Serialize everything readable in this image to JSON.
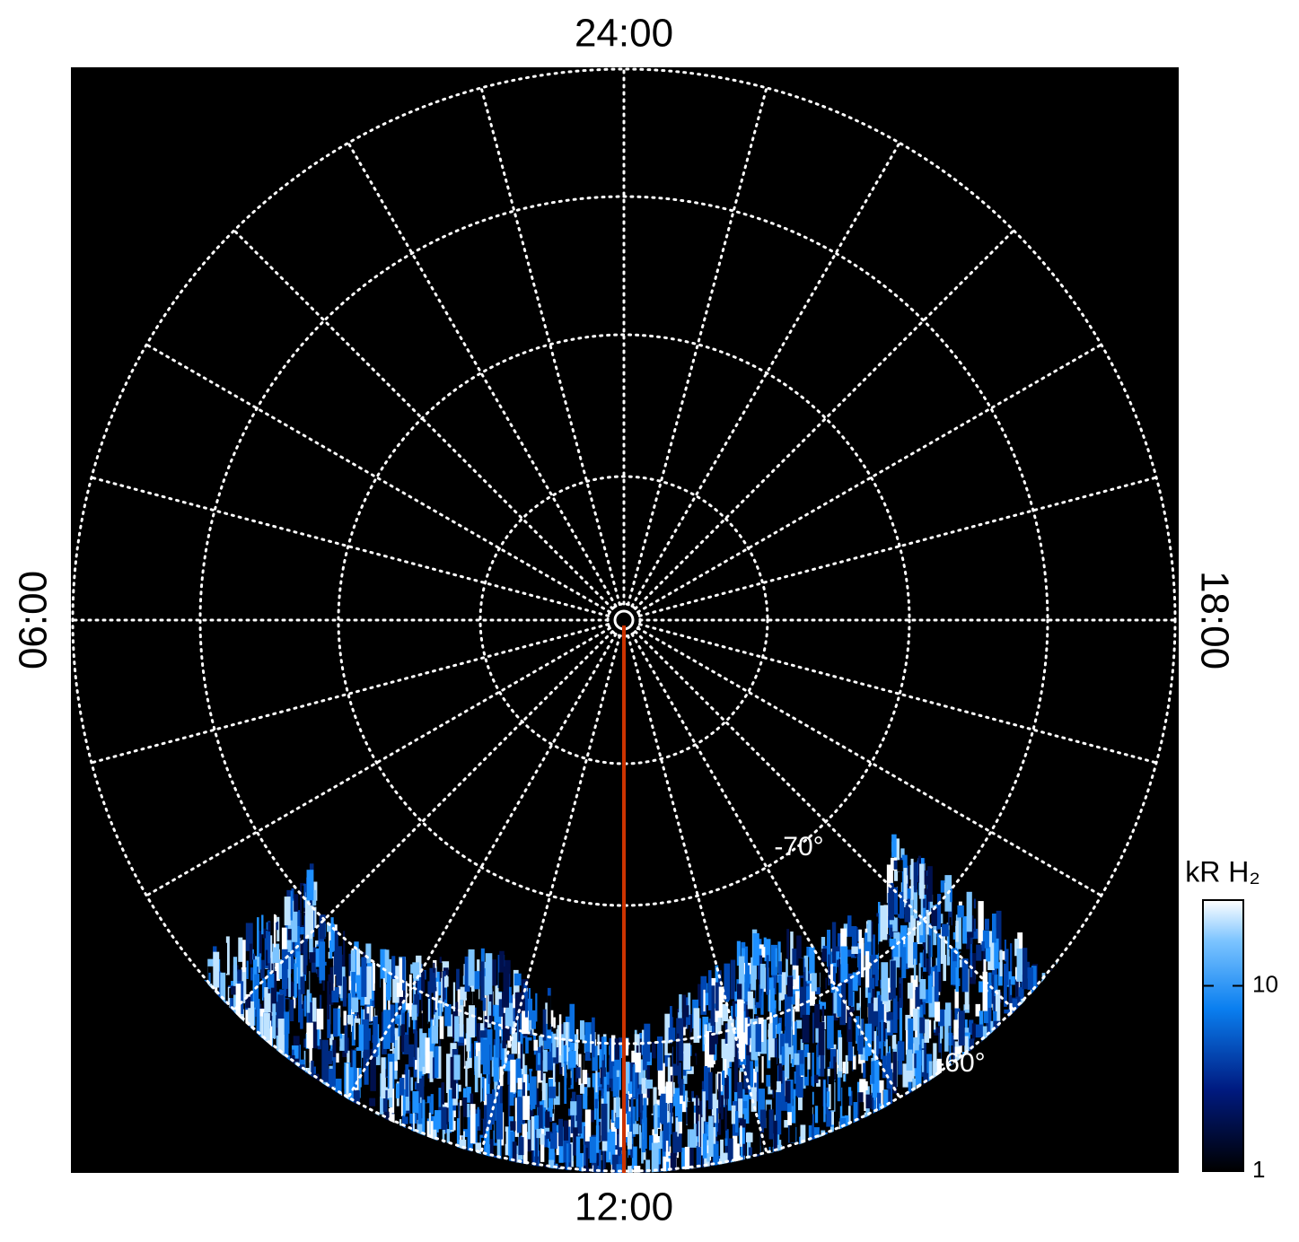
{
  "time_labels": {
    "top": "24:00",
    "bottom": "12:00",
    "left": "06:00",
    "right": "18:00"
  },
  "latitude_labels": [
    "-70°",
    "-60°"
  ],
  "colorbar": {
    "title": "kR H₂",
    "scale": "log",
    "range": [
      1,
      29
    ],
    "ticks": [
      1,
      10
    ]
  }
}
